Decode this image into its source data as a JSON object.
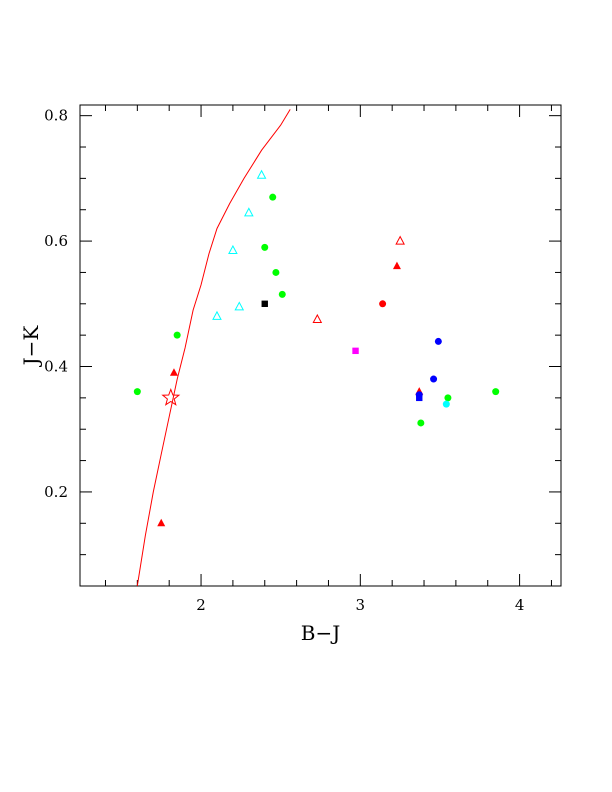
{
  "chart_data": {
    "type": "scatter",
    "xlabel": "B−J",
    "ylabel": "J−K",
    "xlim": [
      1.24,
      4.26
    ],
    "ylim": [
      0.05,
      0.817
    ],
    "x_ticks": [
      2,
      3,
      4
    ],
    "y_ticks": [
      0.2,
      0.4,
      0.6,
      0.8
    ],
    "x_minor_step": 0.2,
    "y_minor_step": 0.05,
    "grid": false,
    "legend": "none",
    "curve": {
      "color": "#ff0000",
      "points": [
        [
          1.6,
          0.05
        ],
        [
          1.65,
          0.13
        ],
        [
          1.7,
          0.2
        ],
        [
          1.75,
          0.26
        ],
        [
          1.8,
          0.32
        ],
        [
          1.85,
          0.38
        ],
        [
          1.9,
          0.43
        ],
        [
          1.95,
          0.49
        ],
        [
          2.0,
          0.53
        ],
        [
          2.05,
          0.58
        ],
        [
          2.1,
          0.62
        ],
        [
          2.18,
          0.66
        ],
        [
          2.27,
          0.7
        ],
        [
          2.38,
          0.745
        ],
        [
          2.5,
          0.785
        ],
        [
          2.56,
          0.81
        ]
      ]
    },
    "star": {
      "x": 1.81,
      "y": 0.35,
      "color": "#ff0000"
    },
    "series": [
      {
        "marker": "filled-circle",
        "color": "#00ff00",
        "points": [
          [
            1.6,
            0.36
          ],
          [
            1.85,
            0.45
          ],
          [
            2.4,
            0.59
          ],
          [
            2.45,
            0.67
          ],
          [
            2.47,
            0.55
          ],
          [
            2.51,
            0.515
          ],
          [
            3.38,
            0.31
          ],
          [
            3.55,
            0.35
          ],
          [
            3.85,
            0.36
          ]
        ]
      },
      {
        "marker": "filled-triangle",
        "color": "#ff0000",
        "points": [
          [
            1.75,
            0.15
          ],
          [
            1.83,
            0.39
          ],
          [
            3.23,
            0.56
          ],
          [
            3.37,
            0.36
          ]
        ]
      },
      {
        "marker": "open-triangle",
        "color": "#00ffff",
        "points": [
          [
            2.1,
            0.48
          ],
          [
            2.2,
            0.585
          ],
          [
            2.24,
            0.495
          ],
          [
            2.3,
            0.645
          ],
          [
            2.38,
            0.705
          ]
        ]
      },
      {
        "marker": "open-triangle",
        "color": "#ff0000",
        "points": [
          [
            2.73,
            0.475
          ],
          [
            3.25,
            0.6
          ]
        ]
      },
      {
        "marker": "filled-square",
        "color": "#000000",
        "points": [
          [
            2.4,
            0.5
          ]
        ]
      },
      {
        "marker": "filled-square",
        "color": "#ff00ff",
        "points": [
          [
            2.97,
            0.425
          ]
        ]
      },
      {
        "marker": "filled-circle",
        "color": "#ff0000",
        "points": [
          [
            3.14,
            0.5
          ]
        ]
      },
      {
        "marker": "filled-circle",
        "color": "#0000ff",
        "points": [
          [
            3.37,
            0.355
          ],
          [
            3.46,
            0.38
          ],
          [
            3.49,
            0.44
          ]
        ]
      },
      {
        "marker": "filled-square",
        "color": "#0000ff",
        "points": [
          [
            3.37,
            0.35
          ]
        ]
      },
      {
        "marker": "filled-circle",
        "color": "#00ffff",
        "points": [
          [
            3.54,
            0.34
          ]
        ]
      }
    ]
  }
}
